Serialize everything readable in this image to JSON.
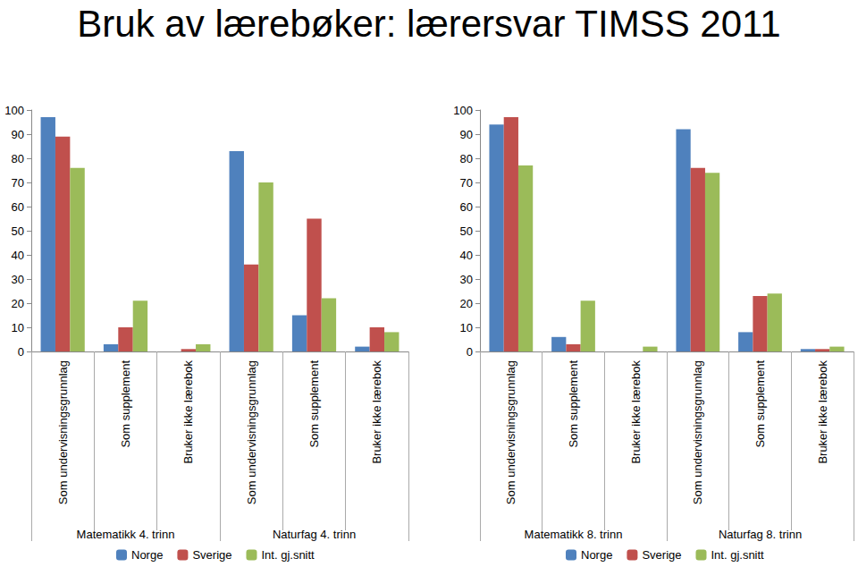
{
  "title": "Bruk av lærebøker: lærersvar TIMSS 2011",
  "chart_data": [
    {
      "type": "bar",
      "categories": [
        "Som undervisningsgrunnlag",
        "Som supplement",
        "Bruker ikke lærebok",
        "Som undervisningsgrunnlag",
        "Som supplement",
        "Bruker ikke lærebok"
      ],
      "groups": [
        "Matematikk 4. trinn",
        "Naturfag 4. trinn"
      ],
      "series": [
        {
          "name": "Norge",
          "color": "#4f81bd",
          "values": [
            97,
            3,
            0,
            83,
            15,
            2
          ]
        },
        {
          "name": "Sverige",
          "color": "#c0504d",
          "values": [
            89,
            10,
            1,
            36,
            55,
            10
          ]
        },
        {
          "name": "Int. gj.snitt",
          "color": "#9bbb59",
          "values": [
            76,
            21,
            3,
            70,
            22,
            8
          ]
        }
      ],
      "ylim": [
        0,
        100
      ],
      "yticks": [
        0,
        10,
        20,
        30,
        40,
        50,
        60,
        70,
        80,
        90,
        100
      ],
      "grid": false,
      "legend": "bottom"
    },
    {
      "type": "bar",
      "categories": [
        "Som undervisningsgrunnlag",
        "Som supplement",
        "Bruker ikke lærebok",
        "Som undervisningsgrunnlag",
        "Som supplement",
        "Bruker ikke lærebok"
      ],
      "groups": [
        "Matematikk 8. trinn",
        "Naturfag 8. trinn"
      ],
      "series": [
        {
          "name": "Norge",
          "color": "#4f81bd",
          "values": [
            94,
            6,
            0,
            92,
            8,
            1
          ]
        },
        {
          "name": "Sverige",
          "color": "#c0504d",
          "values": [
            97,
            3,
            0,
            76,
            23,
            1
          ]
        },
        {
          "name": "Int. gj.snitt",
          "color": "#9bbb59",
          "values": [
            77,
            21,
            2,
            74,
            24,
            2
          ]
        }
      ],
      "ylim": [
        0,
        100
      ],
      "yticks": [
        0,
        10,
        20,
        30,
        40,
        50,
        60,
        70,
        80,
        90,
        100
      ],
      "grid": false,
      "legend": "bottom"
    }
  ]
}
